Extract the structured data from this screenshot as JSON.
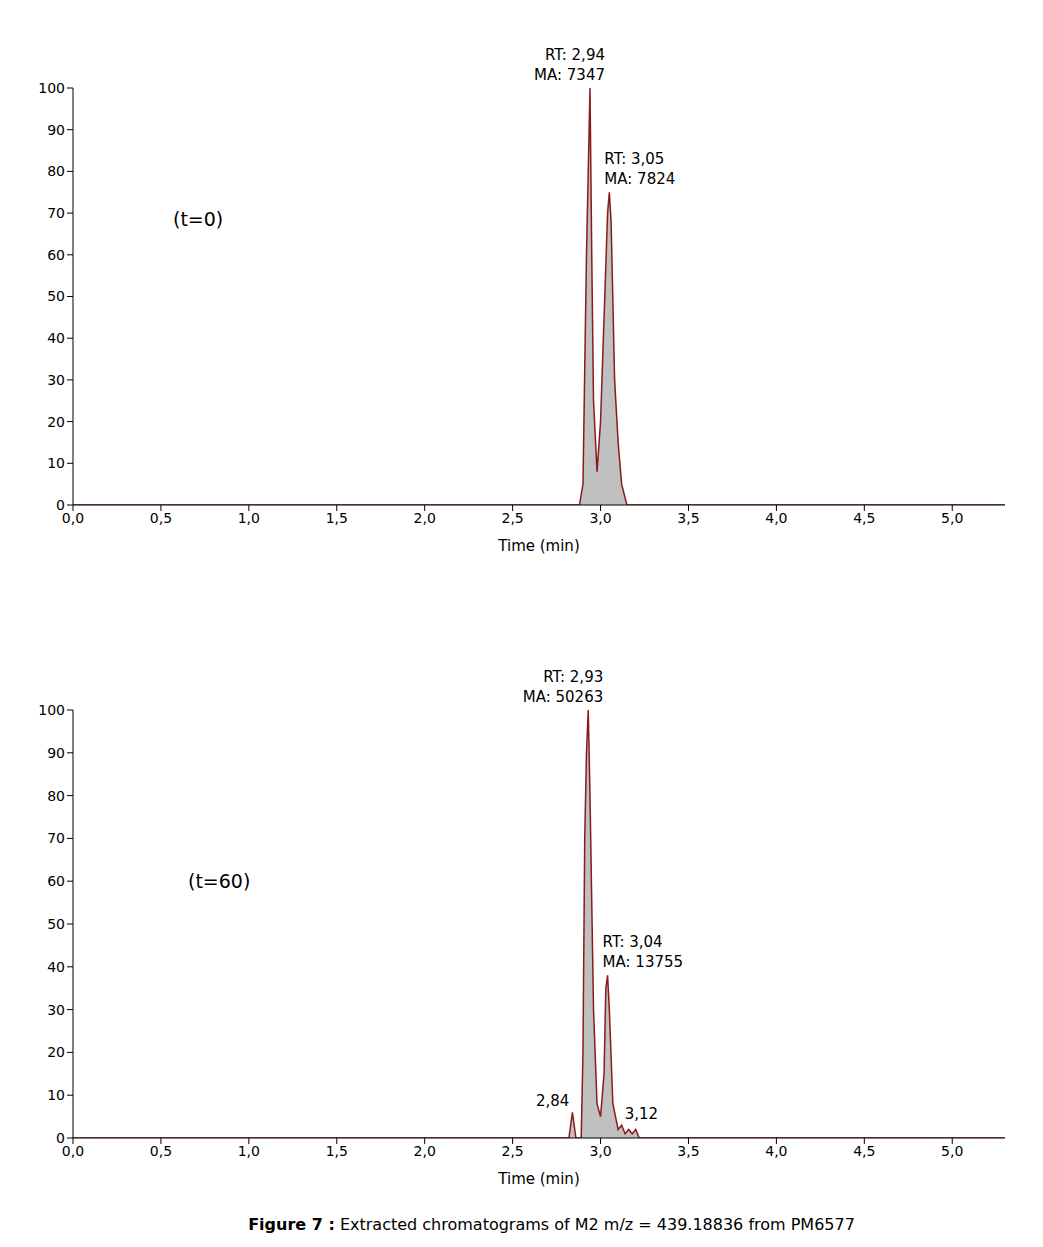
{
  "caption_label": "Figure 7 :",
  "caption": "Extracted chromatograms of M2 m/z = 439.18836 from PM6577",
  "chart_data": [
    {
      "type": "area",
      "annotation": "(t=0)",
      "x_label": "Time (min)",
      "color": "#8b1a1a",
      "x": [
        0,
        2.88,
        2.9,
        2.92,
        2.93,
        2.94,
        2.95,
        2.96,
        2.98,
        3.0,
        3.02,
        3.04,
        3.05,
        3.06,
        3.08,
        3.1,
        3.12,
        3.15,
        5.3
      ],
      "values": [
        0,
        0,
        5,
        60,
        80,
        100,
        60,
        25,
        8,
        20,
        45,
        70,
        75,
        68,
        30,
        15,
        5,
        0,
        0
      ],
      "xlim": [
        0,
        5.3
      ],
      "xticks": [
        {
          "value": 0,
          "label": "0,0"
        },
        {
          "value": 0.5,
          "label": "0,5"
        },
        {
          "value": 1,
          "label": "1,0"
        },
        {
          "value": 1.5,
          "label": "1,5"
        },
        {
          "value": 2,
          "label": "2,0"
        },
        {
          "value": 2.5,
          "label": "2,5"
        },
        {
          "value": 3,
          "label": "3,0"
        },
        {
          "value": 3.5,
          "label": "3,5"
        },
        {
          "value": 4,
          "label": "4,0"
        },
        {
          "value": 4.5,
          "label": "4,5"
        },
        {
          "value": 5,
          "label": "5,0"
        }
      ],
      "ylim": [
        0,
        100
      ],
      "yticks": [
        0,
        10,
        20,
        30,
        40,
        50,
        60,
        70,
        80,
        90,
        100
      ],
      "peaks": [
        {
          "x": 2.94,
          "y": 100,
          "rt_label": "RT: 2,94",
          "area_label": "MA: 7347"
        },
        {
          "x": 3.05,
          "y": 75,
          "rt_label": "RT: 3,05",
          "area_label": "MA: 7824"
        }
      ]
    },
    {
      "type": "area",
      "annotation": "(t=60)",
      "x_label": "Time (min)",
      "color": "#8b1a1a",
      "x": [
        0,
        2.82,
        2.84,
        2.86,
        2.89,
        2.9,
        2.91,
        2.92,
        2.93,
        2.94,
        2.96,
        2.98,
        3.0,
        3.02,
        3.03,
        3.04,
        3.05,
        3.07,
        3.1,
        3.12,
        3.14,
        3.16,
        3.18,
        3.2,
        3.22,
        5.3
      ],
      "values": [
        0,
        0,
        6,
        0,
        0,
        20,
        70,
        90,
        100,
        80,
        30,
        8,
        5,
        15,
        35,
        38,
        30,
        8,
        2,
        3,
        1,
        2,
        1,
        2,
        0,
        0
      ],
      "xlim": [
        0,
        5.3
      ],
      "xticks": [
        {
          "value": 0,
          "label": "0,0"
        },
        {
          "value": 0.5,
          "label": "0,5"
        },
        {
          "value": 1,
          "label": "1,0"
        },
        {
          "value": 1.5,
          "label": "1,5"
        },
        {
          "value": 2,
          "label": "2,0"
        },
        {
          "value": 2.5,
          "label": "2,5"
        },
        {
          "value": 3,
          "label": "3,0"
        },
        {
          "value": 3.5,
          "label": "3,5"
        },
        {
          "value": 4,
          "label": "4,0"
        },
        {
          "value": 4.5,
          "label": "4,5"
        },
        {
          "value": 5,
          "label": "5,0"
        }
      ],
      "ylim": [
        0,
        100
      ],
      "yticks": [
        0,
        10,
        20,
        30,
        40,
        50,
        60,
        70,
        80,
        90,
        100
      ],
      "peaks": [
        {
          "x": 2.93,
          "y": 100,
          "rt_label": "RT: 2,93",
          "area_label": "MA: 50263"
        },
        {
          "x": 3.04,
          "y": 38,
          "rt_label": "RT: 3,04",
          "area_label": "MA: 13755"
        },
        {
          "x": 2.84,
          "y": 6,
          "rt_label": "2,84"
        },
        {
          "x": 3.12,
          "y": 3,
          "rt_label": "3,12"
        }
      ]
    }
  ]
}
